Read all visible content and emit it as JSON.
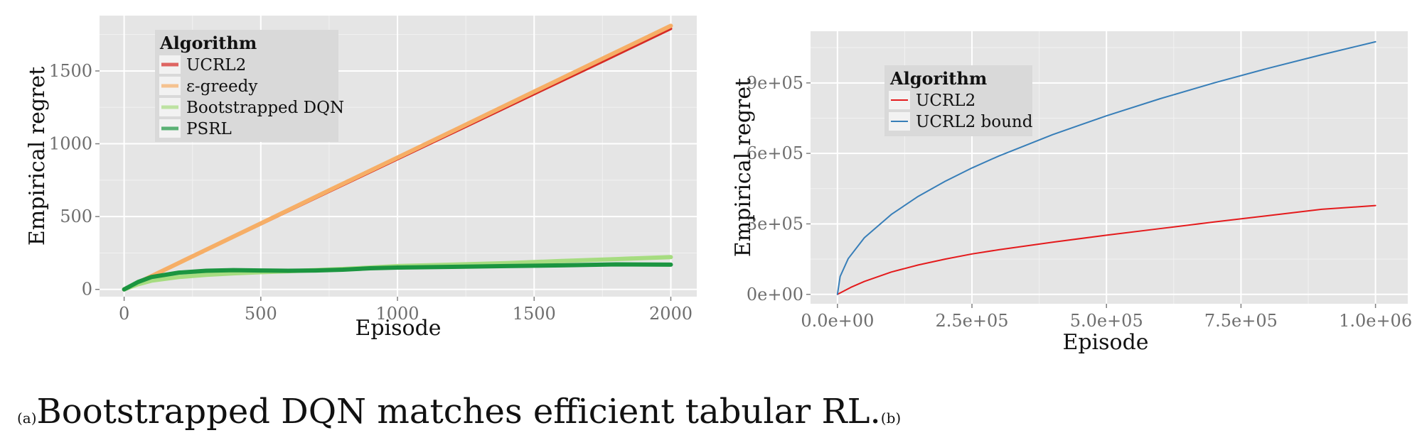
{
  "chart_data": [
    {
      "type": "line",
      "panel_label": "(a)",
      "xlabel": "Episode",
      "ylabel": "Empirical regret",
      "xlim": [
        -90,
        2095
      ],
      "ylim": [
        -50,
        1880
      ],
      "x_ticks": [
        0,
        500,
        1000,
        1500,
        2000
      ],
      "x_tick_labels": [
        "0",
        "500",
        "1000",
        "1500",
        "2000"
      ],
      "y_ticks": [
        0,
        500,
        1000,
        1500
      ],
      "y_tick_labels": [
        "0",
        "500",
        "1000",
        "1500"
      ],
      "grid": true,
      "legend_title": "Algorithm",
      "legend_position": "top-left",
      "series": [
        {
          "name": "UCRL2",
          "color": "#d62a25",
          "x": [
            0,
            250,
            500,
            750,
            1000,
            1250,
            1500,
            1750,
            2000
          ],
          "y": [
            0,
            225,
            448,
            672,
            895,
            1118,
            1342,
            1565,
            1790
          ]
        },
        {
          "name": "ε-greedy",
          "color": "#f6ae66",
          "x": [
            0,
            250,
            500,
            750,
            1000,
            1250,
            1500,
            1750,
            2000
          ],
          "y": [
            0,
            227,
            453,
            680,
            905,
            1131,
            1358,
            1584,
            1810
          ]
        },
        {
          "name": "Bootstrapped DQN",
          "color": "#a6dc80",
          "x": [
            0,
            50,
            100,
            200,
            300,
            400,
            500,
            600,
            700,
            800,
            900,
            1000,
            1200,
            1400,
            1600,
            1800,
            2000
          ],
          "y": [
            0,
            35,
            60,
            85,
            100,
            110,
            118,
            125,
            132,
            140,
            150,
            160,
            170,
            180,
            195,
            208,
            222
          ]
        },
        {
          "name": "PSRL",
          "color": "#1b9540",
          "x": [
            0,
            50,
            100,
            200,
            300,
            400,
            500,
            600,
            700,
            800,
            900,
            1000,
            1200,
            1400,
            1600,
            1800,
            2000
          ],
          "y": [
            0,
            50,
            85,
            115,
            128,
            132,
            130,
            128,
            130,
            135,
            145,
            150,
            155,
            160,
            165,
            172,
            170
          ]
        }
      ]
    },
    {
      "type": "line",
      "panel_label": "(b)",
      "xlabel": "Episode",
      "ylabel": "Empirical regret",
      "xlim": [
        -50000,
        1060000
      ],
      "ylim": [
        -40000,
        1120000
      ],
      "x_ticks": [
        0,
        250000,
        500000,
        750000,
        1000000
      ],
      "x_tick_labels": [
        "0.0e+00",
        "2.5e+05",
        "5.0e+05",
        "7.5e+05",
        "1.0e+06"
      ],
      "y_ticks": [
        0,
        300000,
        600000,
        900000
      ],
      "y_tick_labels": [
        "0e+00",
        "3e+05",
        "6e+05",
        "9e+05"
      ],
      "grid": true,
      "legend_title": "Algorithm",
      "legend_position": "top-left",
      "series": [
        {
          "name": "UCRL2",
          "color": "#e41a1c",
          "x": [
            0,
            25000,
            50000,
            100000,
            150000,
            200000,
            250000,
            300000,
            400000,
            500000,
            600000,
            700000,
            800000,
            900000,
            1000000
          ],
          "y": [
            0,
            30000,
            55000,
            95000,
            125000,
            150000,
            172000,
            190000,
            222000,
            252000,
            280000,
            308000,
            335000,
            362000,
            378000
          ]
        },
        {
          "name": "UCRL2 bound",
          "color": "#377eb8",
          "x": [
            0,
            5000,
            20000,
            50000,
            100000,
            150000,
            200000,
            250000,
            300000,
            400000,
            500000,
            600000,
            700000,
            800000,
            900000,
            1000000
          ],
          "y": [
            0,
            76000,
            152000,
            241000,
            340000,
            417000,
            481000,
            538000,
            589000,
            680000,
            760000,
            833000,
            900000,
            962000,
            1020000,
            1075000
          ]
        }
      ]
    }
  ],
  "caption": {
    "label_a": "(a)",
    "text": "Bootstrapped DQN matches efficient tabular RL.",
    "label_b": "(b)"
  }
}
